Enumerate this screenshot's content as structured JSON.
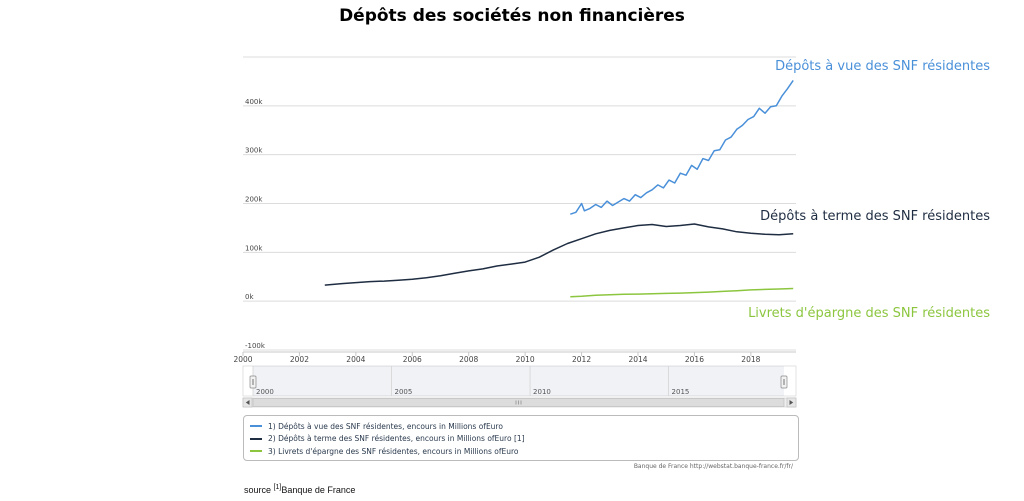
{
  "title": "Dépôts des sociétés non financières",
  "chart_data": {
    "type": "line",
    "x_range": [
      2000,
      2019.6
    ],
    "ylim": [
      -100000,
      500000
    ],
    "y_ticks": [
      {
        "value": -100000,
        "label": "-100k"
      },
      {
        "value": 0,
        "label": "0k"
      },
      {
        "value": 100000,
        "label": "100k"
      },
      {
        "value": 200000,
        "label": "200k"
      },
      {
        "value": 300000,
        "label": "300k"
      },
      {
        "value": 400000,
        "label": "400k"
      }
    ],
    "x_ticks": [
      2000,
      2002,
      2004,
      2006,
      2008,
      2010,
      2012,
      2014,
      2016,
      2018
    ],
    "grid": true,
    "series": [
      {
        "legend": "1) Dépôts à vue des SNF résidentes, encours in Millions ofEuro",
        "annotation": "Dépôts à vue des SNF résidentes",
        "color": "#4a90d9",
        "x": [
          2011.6,
          2011.8,
          2012.0,
          2012.1,
          2012.3,
          2012.5,
          2012.7,
          2012.9,
          2013.1,
          2013.3,
          2013.5,
          2013.7,
          2013.9,
          2014.1,
          2014.3,
          2014.5,
          2014.7,
          2014.9,
          2015.1,
          2015.3,
          2015.5,
          2015.7,
          2015.9,
          2016.1,
          2016.3,
          2016.5,
          2016.7,
          2016.9,
          2017.1,
          2017.3,
          2017.5,
          2017.7,
          2017.9,
          2018.1,
          2018.3,
          2018.5,
          2018.7,
          2018.9,
          2019.1,
          2019.3,
          2019.5
        ],
        "y": [
          178000,
          182000,
          200000,
          185000,
          190000,
          198000,
          192000,
          205000,
          196000,
          203000,
          210000,
          205000,
          218000,
          212000,
          222000,
          228000,
          238000,
          232000,
          248000,
          242000,
          262000,
          258000,
          278000,
          270000,
          292000,
          288000,
          308000,
          310000,
          330000,
          336000,
          352000,
          360000,
          372000,
          378000,
          395000,
          385000,
          398000,
          400000,
          420000,
          435000,
          452000
        ]
      },
      {
        "legend": "2) Dépôts à terme des SNF résidentes, encours in Millions ofEuro [1]",
        "annotation": "Dépôts à terme des SNF résidentes",
        "color": "#1f2d42",
        "x": [
          2002.9,
          2003.5,
          2004.0,
          2004.5,
          2005.0,
          2005.5,
          2006.0,
          2006.5,
          2007.0,
          2007.5,
          2008.0,
          2008.5,
          2009.0,
          2009.5,
          2010.0,
          2010.5,
          2011.0,
          2011.5,
          2012.0,
          2012.5,
          2013.0,
          2013.5,
          2014.0,
          2014.5,
          2015.0,
          2015.5,
          2016.0,
          2016.5,
          2017.0,
          2017.5,
          2018.0,
          2018.5,
          2019.0,
          2019.5
        ],
        "y": [
          33000,
          36000,
          38000,
          40000,
          41000,
          43000,
          45000,
          48000,
          52000,
          57000,
          62000,
          66000,
          72000,
          76000,
          80000,
          90000,
          105000,
          118000,
          128000,
          138000,
          145000,
          150000,
          155000,
          157000,
          153000,
          155000,
          158000,
          152000,
          148000,
          142000,
          139000,
          137000,
          136000,
          138000
        ]
      },
      {
        "legend": "3) Livrets d'épargne des SNF résidentes, encours in Millions ofEuro",
        "annotation": "Livrets d'épargne des SNF résidentes",
        "color": "#8cc63f",
        "x": [
          2011.6,
          2012.0,
          2012.5,
          2013.0,
          2013.5,
          2014.0,
          2014.5,
          2015.0,
          2015.5,
          2016.0,
          2016.5,
          2017.0,
          2017.5,
          2018.0,
          2018.5,
          2019.0,
          2019.5
        ],
        "y": [
          9000,
          10000,
          12000,
          13000,
          14000,
          14500,
          15000,
          16000,
          16500,
          17500,
          18500,
          20000,
          21500,
          23000,
          24000,
          25000,
          26000
        ]
      }
    ]
  },
  "navigator": {
    "labels": [
      "2000",
      "2005",
      "2010",
      "2015"
    ],
    "label_years": [
      2000,
      2005,
      2010,
      2015
    ]
  },
  "credit": "Banque de France http://webstat.banque-france.fr/fr/",
  "source": {
    "prefix": "source ",
    "ref": "[1]",
    "text": "Banque de France"
  }
}
